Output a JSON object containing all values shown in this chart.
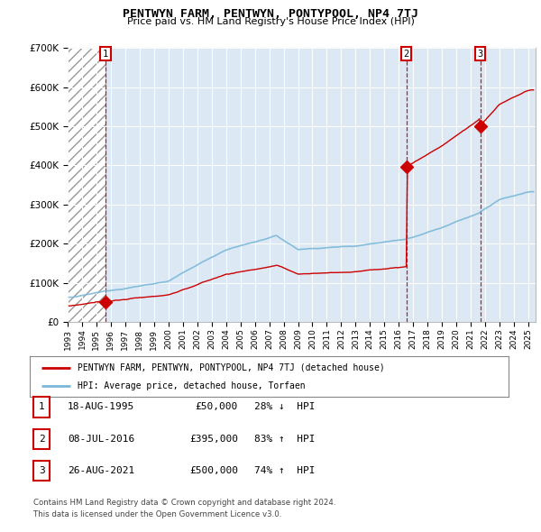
{
  "title": "PENTWYN FARM, PENTWYN, PONTYPOOL, NP4 7TJ",
  "subtitle": "Price paid vs. HM Land Registry's House Price Index (HPI)",
  "legend_line1": "PENTWYN FARM, PENTWYN, PONTYPOOL, NP4 7TJ (detached house)",
  "legend_line2": "HPI: Average price, detached house, Torfaen",
  "sale_points": [
    {
      "label": "1",
      "date": "18-AUG-1995",
      "year": 1995.62,
      "price": 50000,
      "pct": "28%",
      "dir": "↓"
    },
    {
      "label": "2",
      "date": "08-JUL-2016",
      "year": 2016.52,
      "price": 395000,
      "pct": "83%",
      "dir": "↑"
    },
    {
      "label": "3",
      "date": "26-AUG-2021",
      "year": 2021.65,
      "price": 500000,
      "pct": "74%",
      "dir": "↑"
    }
  ],
  "footer_line1": "Contains HM Land Registry data © Crown copyright and database right 2024.",
  "footer_line2": "This data is licensed under the Open Government Licence v3.0.",
  "hpi_color": "#7ab8d9",
  "sale_color": "#cc0000",
  "ylim": [
    0,
    700000
  ],
  "xlim_min": 1993.0,
  "xlim_max": 2025.5,
  "bg_color": "#dce9f5",
  "grid_color": "#ffffff",
  "hatch_end": 1995.62
}
